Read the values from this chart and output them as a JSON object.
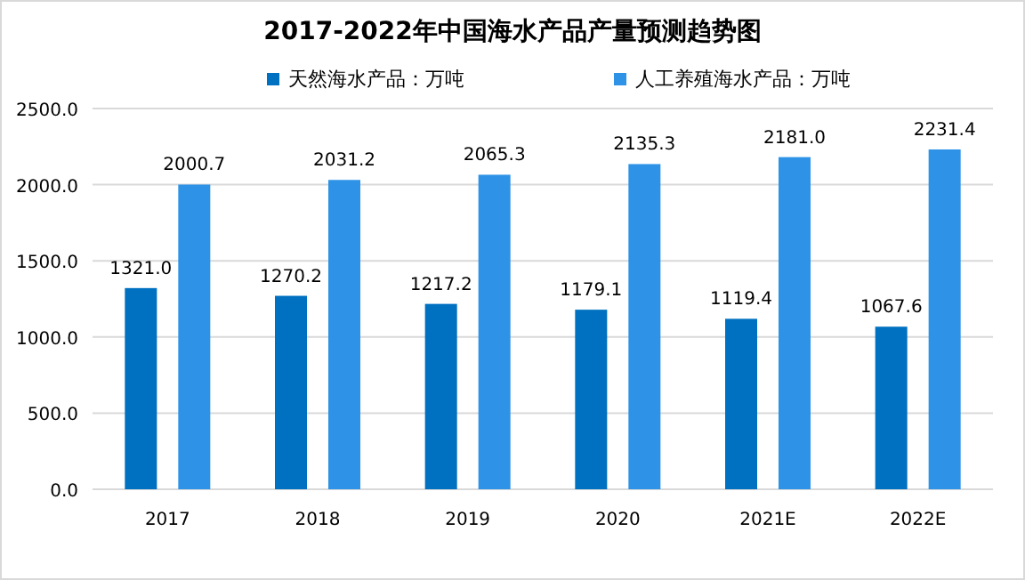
{
  "chart_data": {
    "type": "bar",
    "title": "2017-2022年中国海水产品产量预测趋势图",
    "categories": [
      "2017",
      "2018",
      "2019",
      "2020",
      "2021E",
      "2022E"
    ],
    "series": [
      {
        "name": "天然海水产品：万吨",
        "color": "#0070c0",
        "values": [
          1321.0,
          1270.2,
          1217.2,
          1179.1,
          1119.4,
          1067.6
        ],
        "value_labels": [
          "1321.0",
          "1270.2",
          "1217.2",
          "1179.1",
          "1119.4",
          "1067.6"
        ]
      },
      {
        "name": "人工养殖海水产品：万吨",
        "color": "#2e93e6",
        "values": [
          2000.7,
          2031.2,
          2065.3,
          2135.3,
          2181.0,
          2231.4
        ],
        "value_labels": [
          "2000.7",
          "2031.2",
          "2065.3",
          "2135.3",
          "2181.0",
          "2231.4"
        ]
      }
    ],
    "ylim": [
      0,
      2500
    ],
    "yticks": [
      {
        "value": 0,
        "label": "0.0"
      },
      {
        "value": 500,
        "label": "500.0"
      },
      {
        "value": 1000,
        "label": "1000.0"
      },
      {
        "value": 1500,
        "label": "1500.0"
      },
      {
        "value": 2000,
        "label": "2000.0"
      },
      {
        "value": 2500,
        "label": "2500.0"
      }
    ],
    "grid": "y",
    "legend": "top"
  }
}
